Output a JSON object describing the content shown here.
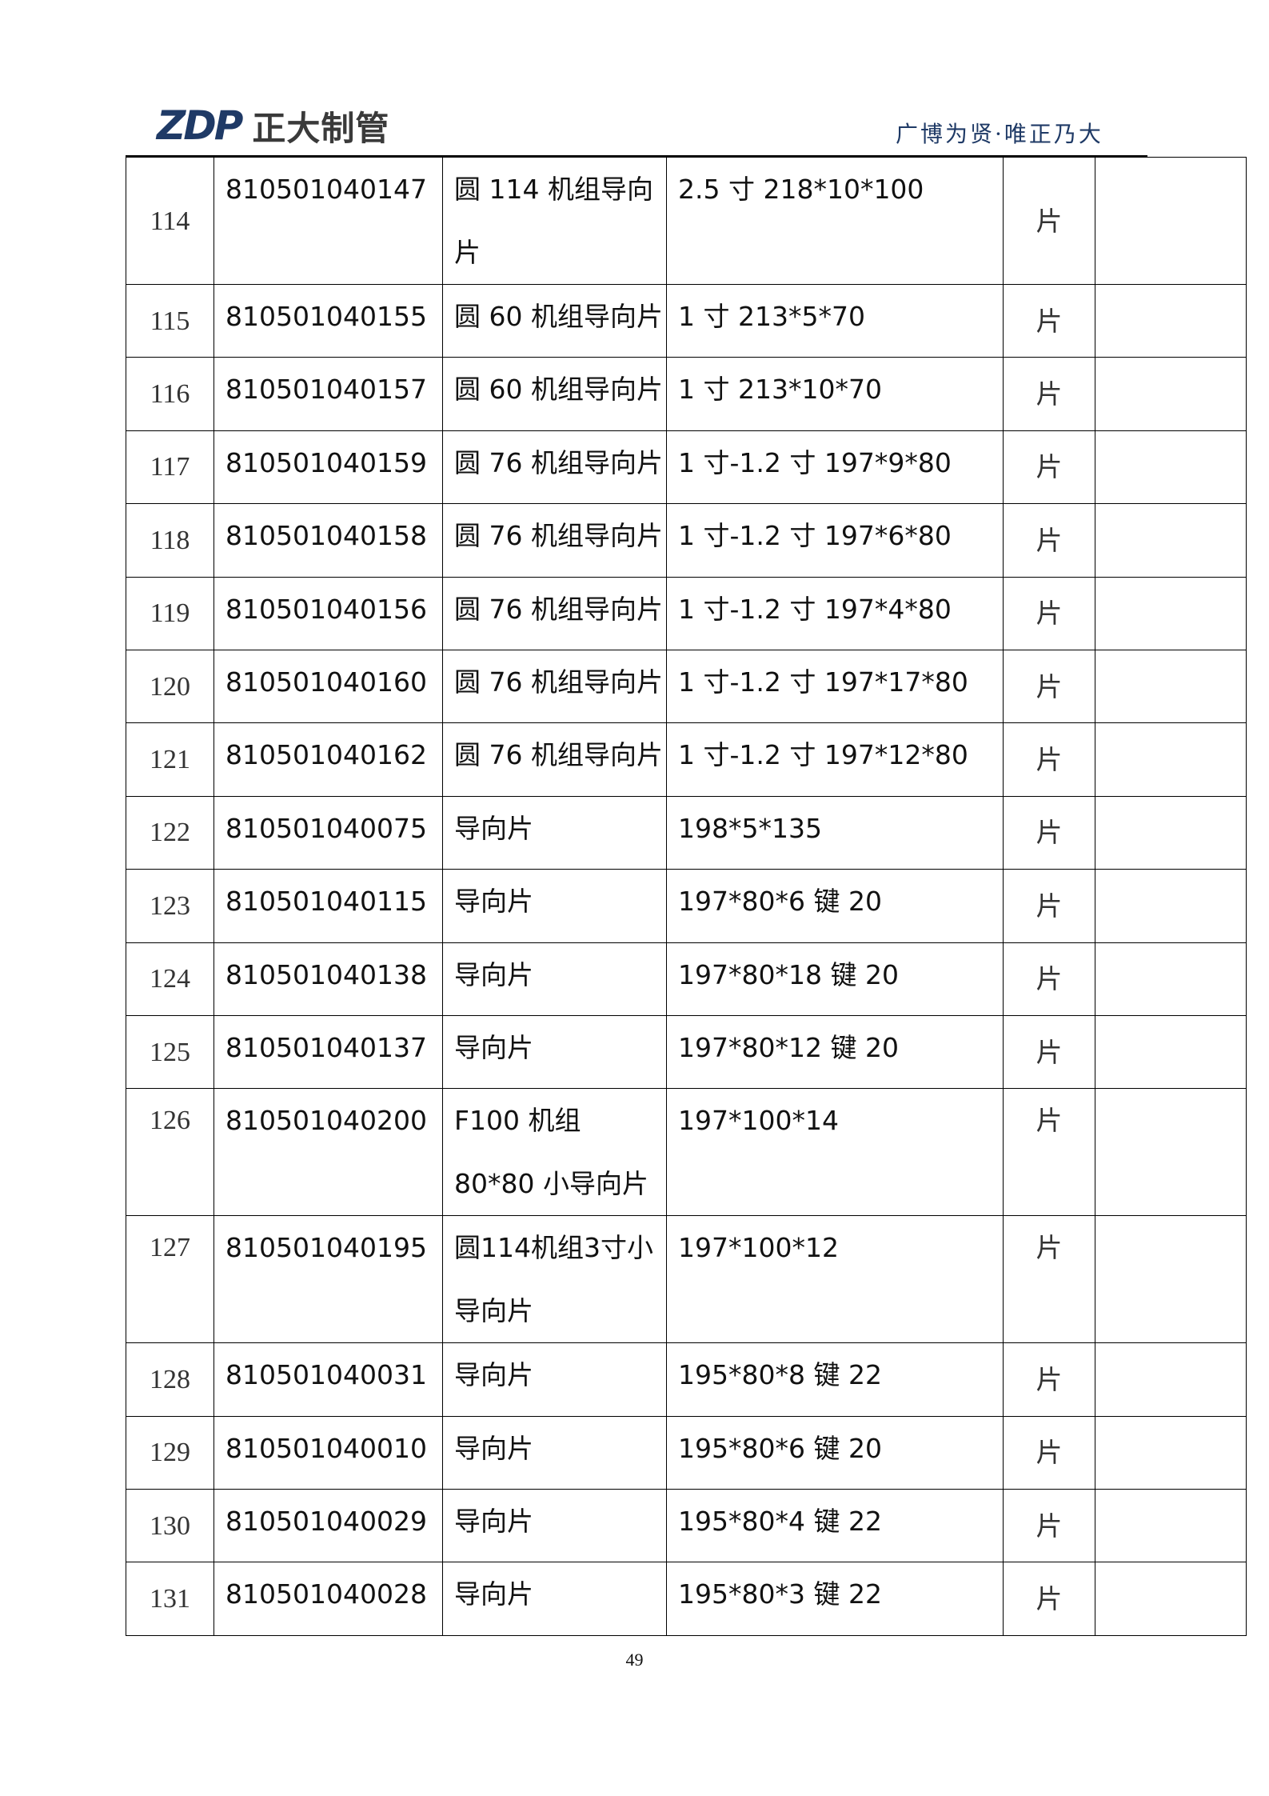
{
  "header": {
    "logo_mark": "ZDP",
    "logo_text": "正大制管",
    "motto": "广博为贤·唯正乃大",
    "brand_color": "#1f3a66"
  },
  "table": {
    "rows": [
      {
        "no": "114",
        "code": "810501040147",
        "name": "圆 114 机组导向片",
        "spec": "2.5 寸 218*10*100",
        "unit": "片",
        "note": ""
      },
      {
        "no": "115",
        "code": "810501040155",
        "name": "圆 60 机组导向片",
        "spec": "1 寸 213*5*70",
        "unit": "片",
        "note": ""
      },
      {
        "no": "116",
        "code": "810501040157",
        "name": "圆 60 机组导向片",
        "spec": "1 寸 213*10*70",
        "unit": "片",
        "note": ""
      },
      {
        "no": "117",
        "code": "810501040159",
        "name": "圆 76 机组导向片",
        "spec": "1 寸-1.2 寸 197*9*80",
        "unit": "片",
        "note": ""
      },
      {
        "no": "118",
        "code": "810501040158",
        "name": "圆 76 机组导向片",
        "spec": "1 寸-1.2 寸 197*6*80",
        "unit": "片",
        "note": ""
      },
      {
        "no": "119",
        "code": "810501040156",
        "name": "圆 76 机组导向片",
        "spec": "1 寸-1.2 寸 197*4*80",
        "unit": "片",
        "note": ""
      },
      {
        "no": "120",
        "code": "810501040160",
        "name": "圆 76 机组导向片",
        "spec": "1 寸-1.2 寸 197*17*80",
        "unit": "片",
        "note": ""
      },
      {
        "no": "121",
        "code": "810501040162",
        "name": "圆 76 机组导向片",
        "spec": "1 寸-1.2 寸 197*12*80",
        "unit": "片",
        "note": ""
      },
      {
        "no": "122",
        "code": "810501040075",
        "name": "导向片",
        "spec": "198*5*135",
        "unit": "片",
        "note": ""
      },
      {
        "no": "123",
        "code": "810501040115",
        "name": "导向片",
        "spec": "197*80*6 键 20",
        "unit": "片",
        "note": ""
      },
      {
        "no": "124",
        "code": "810501040138",
        "name": "导向片",
        "spec": "197*80*18 键 20",
        "unit": "片",
        "note": ""
      },
      {
        "no": "125",
        "code": "810501040137",
        "name": "导向片",
        "spec": "197*80*12 键 20",
        "unit": "片",
        "note": ""
      },
      {
        "no": "126",
        "code": "810501040200",
        "name": "F100 机组 80*80 小导向片",
        "spec": "197*100*14",
        "unit": "片",
        "note": ""
      },
      {
        "no": "127",
        "code": "810501040195",
        "name": "圆114机组3寸小导向片",
        "spec": "197*100*12",
        "unit": "片",
        "note": ""
      },
      {
        "no": "128",
        "code": "810501040031",
        "name": "导向片",
        "spec": "195*80*8 键 22",
        "unit": "片",
        "note": ""
      },
      {
        "no": "129",
        "code": "810501040010",
        "name": "导向片",
        "spec": "195*80*6 键 20",
        "unit": "片",
        "note": ""
      },
      {
        "no": "130",
        "code": "810501040029",
        "name": "导向片",
        "spec": "195*80*4 键 22",
        "unit": "片",
        "note": ""
      },
      {
        "no": "131",
        "code": "810501040028",
        "name": "导向片",
        "spec": "195*80*3 键 22",
        "unit": "片",
        "note": ""
      }
    ]
  },
  "footer": {
    "page_number": "49"
  }
}
